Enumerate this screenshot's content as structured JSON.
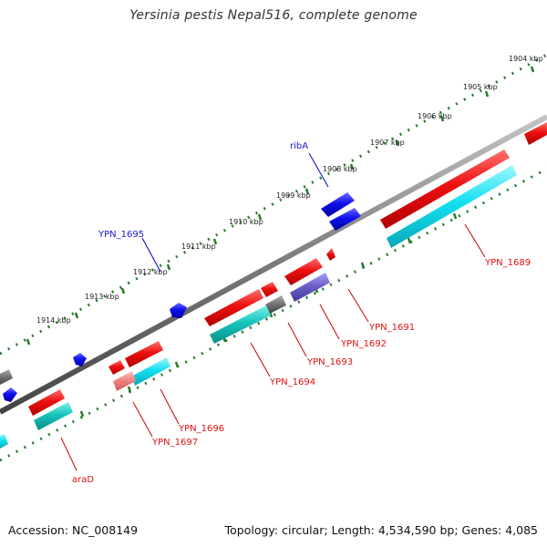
{
  "title": "Yersinia pestis Nepal516, complete genome",
  "footer": {
    "accession": "Accession: NC_008149",
    "topology": "Topology: circular; Length: 4,534,590 bp; Genes: 4,085"
  },
  "colors": {
    "forward_gene": "#ee1111",
    "reverse_gene": "#11ccdd",
    "rna_gene": "#1111dd",
    "pseudo_gene": "#777777",
    "rrna_like": "#6a60cc",
    "backbone": "#7a7a7a",
    "tick": "#2a7a2a"
  },
  "ruler": {
    "unit": "kbp",
    "ticks": [
      "1904 kbp",
      "1905 kbp",
      "1906 kbp",
      "1907 kbp",
      "1908 kbp",
      "1909 kbp",
      "1910 kbp",
      "1911 kbp",
      "1912 kbp",
      "1913 kbp",
      "1914 kbp"
    ]
  },
  "gene_labels": {
    "ribA": "ribA",
    "YPN_1695": "YPN_1695",
    "YPN_1689": "YPN_1689",
    "YPN_1691": "YPN_1691",
    "YPN_1692": "YPN_1692",
    "YPN_1693": "YPN_1693",
    "YPN_1694": "YPN_1694",
    "YPN_1696": "YPN_1696",
    "YPN_1697": "YPN_1697",
    "araD": "araD"
  },
  "legend_icons": [
    "forward-gene-arrow",
    "reverse-gene-arrow",
    "backbone-line"
  ]
}
